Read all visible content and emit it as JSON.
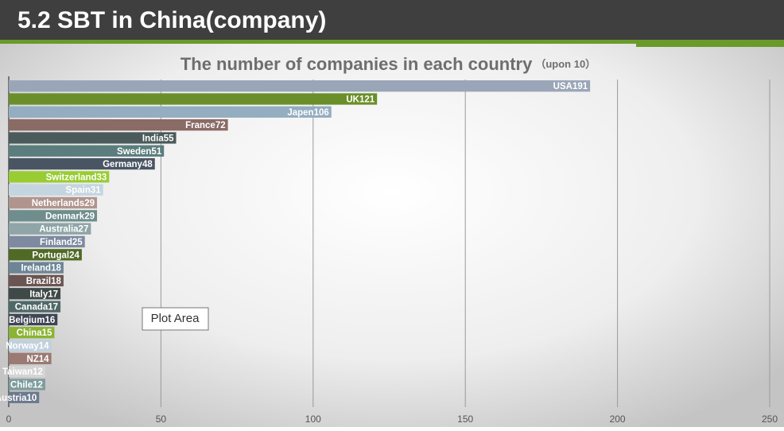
{
  "header": {
    "title": "5.2 SBT in China(company)"
  },
  "chart_data": {
    "type": "bar",
    "orientation": "horizontal",
    "title": "The number of companies in each country",
    "subtitle": "（upon 10）",
    "categories": [
      "USA",
      "UK",
      "Japen",
      "France",
      "India",
      "Sweden",
      "Germany",
      "Switzerland",
      "Spain",
      "Netherlands",
      "Denmark",
      "Australia",
      "Finland",
      "Portugal",
      "Ireland",
      "Brazil",
      "Italy",
      "Canada",
      "Belgium",
      "China",
      "Norway",
      "NZ",
      "Taiwan",
      "Chile",
      "Austria"
    ],
    "values": [
      191,
      121,
      106,
      72,
      55,
      51,
      48,
      33,
      31,
      29,
      29,
      27,
      25,
      24,
      18,
      18,
      17,
      17,
      16,
      15,
      14,
      14,
      12,
      12,
      10
    ],
    "colors": [
      "#9aa6b8",
      "#6a8f2a",
      "#94adc0",
      "#8a6b66",
      "#4b5a5a",
      "#5b7d7d",
      "#4a5563",
      "#99cc33",
      "#c5d5e0",
      "#b0958f",
      "#6e8d8c",
      "#8fa5a8",
      "#7d8aa0",
      "#4f6a25",
      "#6d8595",
      "#6b5552",
      "#3f4a48",
      "#4f6968",
      "#3e4553",
      "#8ab434",
      "#c0d0dc",
      "#9a7a73",
      "#d4d4d4",
      "#7f9c9c",
      "#6c7a8e"
    ],
    "xlim": [
      0,
      250
    ],
    "xticks": [
      0,
      50,
      100,
      150,
      200,
      250
    ],
    "grid": true
  },
  "tooltip": "Plot Area"
}
